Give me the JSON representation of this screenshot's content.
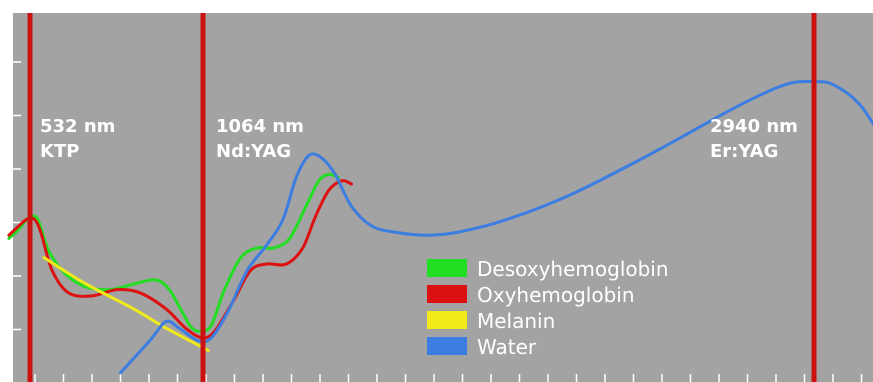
{
  "chart_data": {
    "type": "line",
    "title": "",
    "xlabel": "",
    "ylabel": "",
    "x_unit": "nm",
    "xlim": [
      400,
      3400
    ],
    "ylim": [
      0,
      1
    ],
    "grid": false,
    "legend_position": "bottom-center",
    "colors": {
      "background": "#a3a3a3",
      "laser_line": "#cc1111",
      "axis": "#ffffff"
    },
    "lasers": [
      {
        "wavelength": 532,
        "wavelength_label": "532 nm",
        "name": "KTP"
      },
      {
        "wavelength": 1064,
        "wavelength_label": "1064 nm",
        "name": "Nd:YAG"
      },
      {
        "wavelength": 2940,
        "wavelength_label": "2940 nm",
        "name": "Er:YAG"
      }
    ],
    "series": [
      {
        "name": "Desoxyhemoglobin",
        "color": "#22dd22",
        "points": [
          [
            450,
            0.38
          ],
          [
            490,
            0.41
          ],
          [
            520,
            0.44
          ],
          [
            545,
            0.45
          ],
          [
            560,
            0.43
          ],
          [
            590,
            0.34
          ],
          [
            640,
            0.27
          ],
          [
            700,
            0.23
          ],
          [
            780,
            0.22
          ],
          [
            860,
            0.24
          ],
          [
            920,
            0.25
          ],
          [
            960,
            0.22
          ],
          [
            1000,
            0.15
          ],
          [
            1030,
            0.1
          ],
          [
            1060,
            0.09
          ],
          [
            1090,
            0.11
          ],
          [
            1130,
            0.22
          ],
          [
            1180,
            0.32
          ],
          [
            1230,
            0.35
          ],
          [
            1280,
            0.35
          ],
          [
            1330,
            0.38
          ],
          [
            1380,
            0.48
          ],
          [
            1420,
            0.56
          ],
          [
            1450,
            0.58
          ],
          [
            1480,
            0.57
          ]
        ]
      },
      {
        "name": "Oxyhemoglobin",
        "color": "#dd1111",
        "points": [
          [
            450,
            0.39
          ],
          [
            490,
            0.42
          ],
          [
            520,
            0.44
          ],
          [
            545,
            0.44
          ],
          [
            565,
            0.4
          ],
          [
            600,
            0.28
          ],
          [
            650,
            0.21
          ],
          [
            720,
            0.2
          ],
          [
            800,
            0.22
          ],
          [
            870,
            0.21
          ],
          [
            950,
            0.16
          ],
          [
            1010,
            0.1
          ],
          [
            1060,
            0.07
          ],
          [
            1100,
            0.09
          ],
          [
            1160,
            0.19
          ],
          [
            1210,
            0.28
          ],
          [
            1260,
            0.3
          ],
          [
            1320,
            0.3
          ],
          [
            1370,
            0.35
          ],
          [
            1410,
            0.45
          ],
          [
            1450,
            0.53
          ],
          [
            1490,
            0.56
          ],
          [
            1520,
            0.55
          ]
        ]
      },
      {
        "name": "Melanin",
        "color": "#f0ea1a",
        "points": [
          [
            575,
            0.32
          ],
          [
            700,
            0.24
          ],
          [
            850,
            0.16
          ],
          [
            950,
            0.1
          ],
          [
            1080,
            0.03
          ]
        ]
      },
      {
        "name": "Water",
        "color": "#3b7de0",
        "points": [
          [
            810,
            -0.04
          ],
          [
            900,
            0.06
          ],
          [
            950,
            0.12
          ],
          [
            990,
            0.1
          ],
          [
            1050,
            0.06
          ],
          [
            1090,
            0.07
          ],
          [
            1140,
            0.15
          ],
          [
            1200,
            0.28
          ],
          [
            1260,
            0.36
          ],
          [
            1310,
            0.44
          ],
          [
            1350,
            0.57
          ],
          [
            1390,
            0.64
          ],
          [
            1430,
            0.63
          ],
          [
            1470,
            0.58
          ],
          [
            1520,
            0.48
          ],
          [
            1580,
            0.42
          ],
          [
            1650,
            0.4
          ],
          [
            1750,
            0.39
          ],
          [
            1850,
            0.4
          ],
          [
            2000,
            0.44
          ],
          [
            2200,
            0.52
          ],
          [
            2450,
            0.65
          ],
          [
            2700,
            0.79
          ],
          [
            2850,
            0.86
          ],
          [
            2940,
            0.87
          ],
          [
            3000,
            0.86
          ],
          [
            3080,
            0.8
          ],
          [
            3150,
            0.69
          ],
          [
            3200,
            0.58
          ]
        ]
      }
    ]
  }
}
